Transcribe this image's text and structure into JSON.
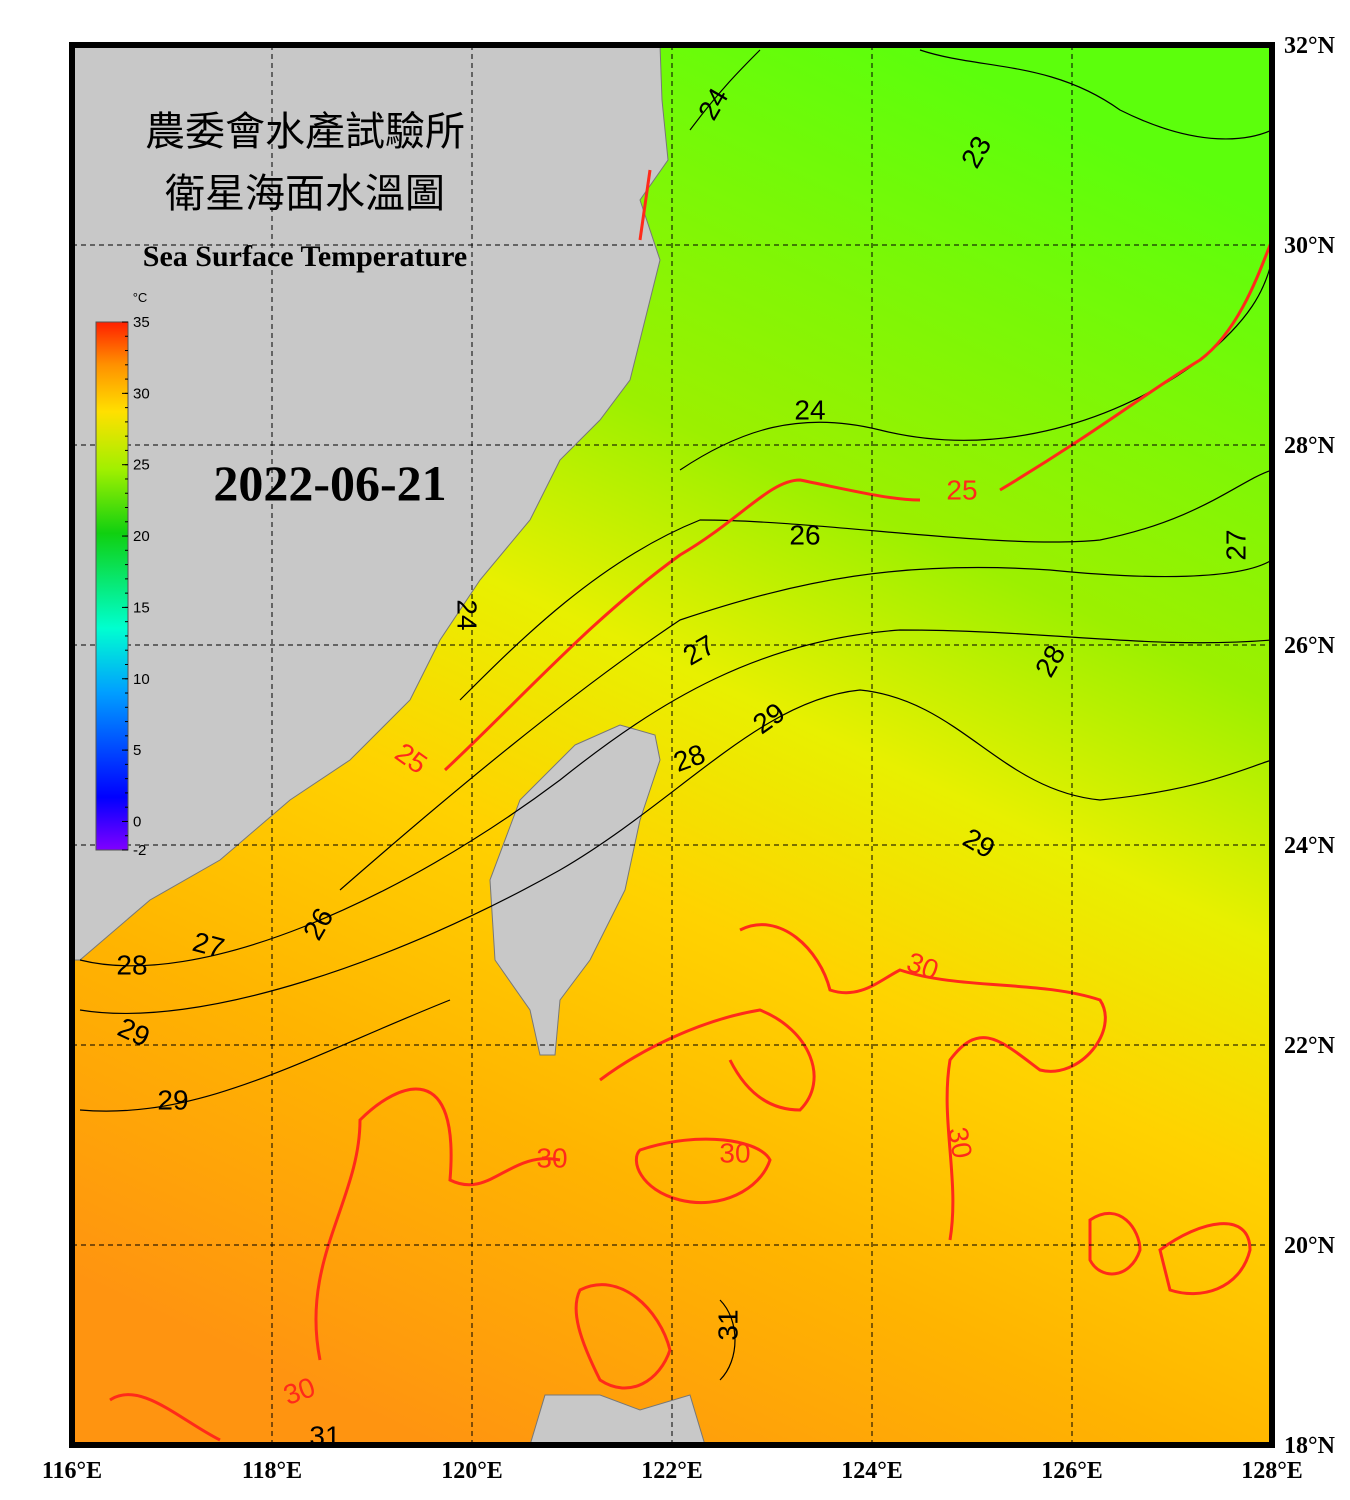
{
  "title_zh_1": "農委會水產試驗所",
  "title_zh_2": "衛星海面水溫圖",
  "title_en": "Sea Surface Temperature",
  "date": "2022-06-21",
  "lon_range": [
    116,
    128
  ],
  "lat_range": [
    18,
    32
  ],
  "lon_ticks": [
    {
      "value": 116,
      "label": "116°E"
    },
    {
      "value": 118,
      "label": "118°E"
    },
    {
      "value": 120,
      "label": "120°E"
    },
    {
      "value": 122,
      "label": "122°E"
    },
    {
      "value": 124,
      "label": "124°E"
    },
    {
      "value": 126,
      "label": "126°E"
    },
    {
      "value": 128,
      "label": "128°E"
    }
  ],
  "lat_ticks": [
    {
      "value": 18,
      "label": "18°N"
    },
    {
      "value": 20,
      "label": "20°N"
    },
    {
      "value": 22,
      "label": "22°N"
    },
    {
      "value": 24,
      "label": "24°N"
    },
    {
      "value": 26,
      "label": "26°N"
    },
    {
      "value": 28,
      "label": "28°N"
    },
    {
      "value": 30,
      "label": "30°N"
    },
    {
      "value": 32,
      "label": "32°N"
    }
  ],
  "colorbar": {
    "unit": "°C",
    "range": [
      -2,
      35
    ],
    "ticks": [
      35,
      30,
      25,
      20,
      15,
      10,
      5,
      0,
      -2
    ]
  },
  "highlight_levels": [
    25,
    30
  ],
  "highlight_color": "#ff2a1a",
  "contour_labels": [
    {
      "value": 24
    },
    {
      "value": 23
    },
    {
      "value": 24
    },
    {
      "value": 25
    },
    {
      "value": 26
    },
    {
      "value": 27
    },
    {
      "value": 24
    },
    {
      "value": 25
    },
    {
      "value": 27
    },
    {
      "value": 28
    },
    {
      "value": 29
    },
    {
      "value": 28
    },
    {
      "value": 29
    },
    {
      "value": 26
    },
    {
      "value": 27
    },
    {
      "value": 28
    },
    {
      "value": 29
    },
    {
      "value": 29
    },
    {
      "value": 30
    },
    {
      "value": 30
    },
    {
      "value": 30
    },
    {
      "value": 30
    },
    {
      "value": 31
    },
    {
      "value": 30
    },
    {
      "value": 31
    }
  ]
}
